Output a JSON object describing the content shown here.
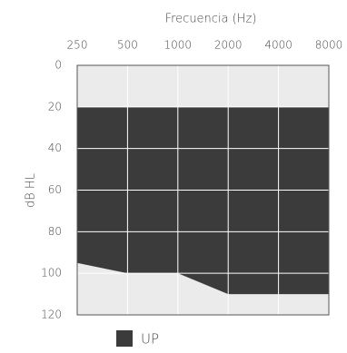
{
  "chart_data": {
    "type": "area",
    "x_label": "Frecuencia (Hz)",
    "y_label": "dB HL",
    "x": [
      250,
      500,
      1000,
      2000,
      4000,
      8000
    ],
    "xscale": "log",
    "xlim": [
      250,
      8000
    ],
    "xticks": [
      250,
      500,
      1000,
      2000,
      4000,
      8000
    ],
    "ylim": [
      0,
      120
    ],
    "y_inverted": true,
    "yticks": [
      0,
      20,
      40,
      60,
      80,
      100,
      120
    ],
    "grid": true,
    "background": "#ebebeb",
    "series": [
      {
        "name": "UP",
        "color": "#3b3b3b",
        "base": [
          20,
          20,
          20,
          20,
          20,
          20
        ],
        "values": [
          95,
          100,
          100,
          110,
          110,
          110
        ]
      }
    ]
  }
}
